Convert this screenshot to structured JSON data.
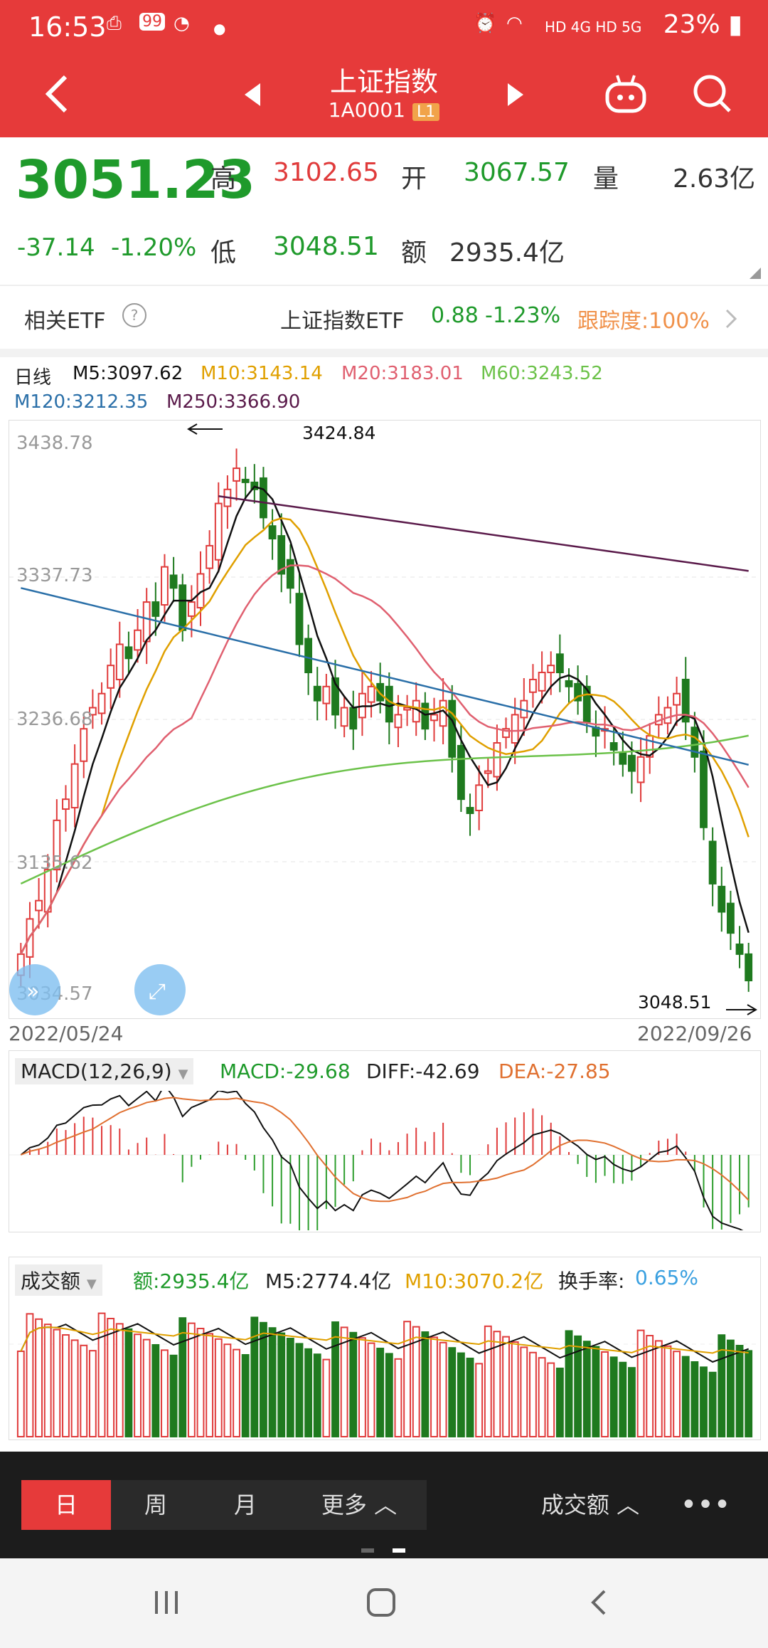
{
  "status": {
    "time": "16:53",
    "network": "HD 4G HD 5G",
    "battery": "23%"
  },
  "header": {
    "title": "上证指数",
    "code": "1A0001",
    "level": "L1"
  },
  "quote": {
    "price": "3051.23",
    "change": "-37.14",
    "change_pct": "-1.20%",
    "high_label": "高",
    "high": "3102.65",
    "low_label": "低",
    "low": "3048.51",
    "open_label": "开",
    "open": "3067.57",
    "amount_label": "额",
    "amount": "2935.4亿",
    "volume_label": "量",
    "volume": "2.63亿"
  },
  "etf": {
    "label": "相关ETF",
    "name": "上证指数ETF",
    "price": "0.88",
    "pct": "-1.23%",
    "tracking": "跟踪度:100%"
  },
  "ma_legend": {
    "period": "日线",
    "m5": "M5:3097.62",
    "m10": "M10:3143.14",
    "m20": "M20:3183.01",
    "m60": "M60:3243.52",
    "m120": "M120:3212.35",
    "m250": "M250:3366.90"
  },
  "main_chart": {
    "y_ticks": [
      "3438.78",
      "3337.73",
      "3236.68",
      "3135.62",
      "3034.57"
    ],
    "high_marker": "3424.84",
    "low_marker": "3048.51",
    "start_date": "2022/05/24",
    "end_date": "2022/09/26"
  },
  "macd": {
    "label": "MACD(12,26,9)",
    "macd": "MACD:-29.68",
    "diff": "DIFF:-42.69",
    "dea": "DEA:-27.85"
  },
  "volume": {
    "label": "成交额",
    "amount": "额:2935.4亿",
    "m5": "M5:2774.4亿",
    "m10": "M10:3070.2亿",
    "turnover_label": "换手率:",
    "turnover": "0.65%"
  },
  "tabs": {
    "day": "日",
    "week": "周",
    "month": "月",
    "more": "更多",
    "indicator": "成交额"
  },
  "colors": {
    "up": "#e03b3b",
    "down": "#1f7a1f",
    "brand": "#e63a3a",
    "m5": "#111111",
    "m10": "#e0a000",
    "m20": "#e06070",
    "m60": "#6cc24a",
    "m120": "#2a6fa8",
    "m250": "#5a1a4a"
  },
  "chart_data": {
    "type": "candlestick",
    "ylim": [
      3034.57,
      3438.78
    ],
    "closes": [
      3070,
      3095,
      3108,
      3130,
      3165,
      3180,
      3205,
      3230,
      3245,
      3255,
      3275,
      3290,
      3280,
      3300,
      3320,
      3310,
      3345,
      3330,
      3300,
      3320,
      3340,
      3360,
      3390,
      3400,
      3415,
      3405,
      3400,
      3380,
      3365,
      3340,
      3330,
      3290,
      3270,
      3250,
      3260,
      3240,
      3245,
      3230,
      3255,
      3260,
      3250,
      3235,
      3240,
      3245,
      3250,
      3230,
      3240,
      3250,
      3210,
      3180,
      3170,
      3190,
      3200,
      3220,
      3230,
      3240,
      3250,
      3265,
      3270,
      3275,
      3270,
      3260,
      3250,
      3235,
      3225,
      3230,
      3215,
      3205,
      3200,
      3210,
      3225,
      3240,
      3245,
      3255,
      3235,
      3210,
      3160,
      3120,
      3100,
      3085,
      3070,
      3051.23
    ]
  }
}
